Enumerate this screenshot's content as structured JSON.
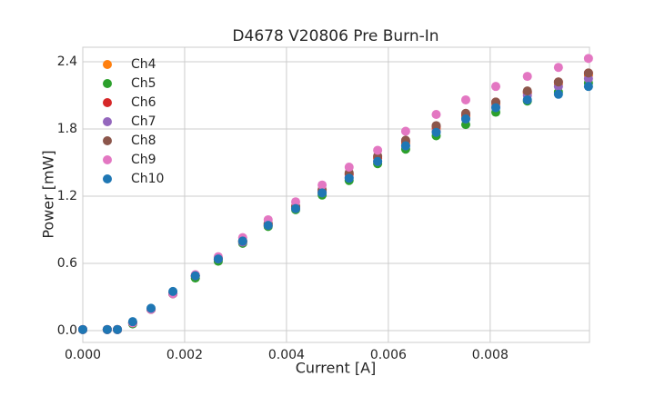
{
  "chart_data": {
    "type": "scatter",
    "title": "D4678 V20806 Pre Burn-In",
    "x_label": "Current [A]",
    "y_label": "Power [mW]",
    "x": [
      0,
      0.00048,
      0.00068,
      0.00098,
      0.00134,
      0.00177,
      0.00221,
      0.00266,
      0.00314,
      0.00364,
      0.00418,
      0.0047,
      0.00523,
      0.00579,
      0.00634,
      0.00694,
      0.00752,
      0.00811,
      0.00873,
      0.00934,
      0.00993
    ],
    "series": [
      {
        "name": "Ch4",
        "color": "#ff7f0e",
        "values": [
          0.01,
          0.01,
          0.01,
          0.07,
          0.19,
          0.33,
          0.49,
          0.64,
          0.8,
          0.95,
          1.1,
          1.24,
          1.39,
          1.54,
          1.67,
          1.8,
          1.91,
          2.02,
          2.12,
          2.2,
          2.28
        ]
      },
      {
        "name": "Ch5",
        "color": "#2ca02c",
        "values": [
          0.01,
          0.01,
          0.01,
          0.06,
          0.19,
          0.33,
          0.47,
          0.62,
          0.78,
          0.93,
          1.08,
          1.21,
          1.34,
          1.49,
          1.62,
          1.74,
          1.84,
          1.95,
          2.05,
          2.13,
          2.21
        ]
      },
      {
        "name": "Ch6",
        "color": "#d62728",
        "values": [
          0.01,
          0.01,
          0.01,
          0.07,
          0.19,
          0.33,
          0.49,
          0.64,
          0.8,
          0.95,
          1.11,
          1.25,
          1.4,
          1.55,
          1.69,
          1.82,
          1.93,
          2.04,
          2.13,
          2.22,
          2.3
        ]
      },
      {
        "name": "Ch7",
        "color": "#9467bd",
        "values": [
          0.01,
          0.01,
          0.01,
          0.07,
          0.19,
          0.33,
          0.49,
          0.64,
          0.79,
          0.94,
          1.09,
          1.23,
          1.37,
          1.51,
          1.65,
          1.78,
          1.89,
          2.0,
          2.1,
          2.18,
          2.25
        ]
      },
      {
        "name": "Ch8",
        "color": "#8c564b",
        "values": [
          0.01,
          0.01,
          0.01,
          0.07,
          0.19,
          0.33,
          0.49,
          0.65,
          0.8,
          0.96,
          1.11,
          1.26,
          1.41,
          1.56,
          1.7,
          1.83,
          1.94,
          2.04,
          2.14,
          2.22,
          2.3
        ]
      },
      {
        "name": "Ch9",
        "color": "#e377c2",
        "values": [
          0.01,
          0.01,
          0.01,
          0.07,
          0.19,
          0.33,
          0.5,
          0.66,
          0.83,
          0.99,
          1.15,
          1.3,
          1.46,
          1.61,
          1.78,
          1.93,
          2.06,
          2.18,
          2.27,
          2.35,
          2.43
        ]
      },
      {
        "name": "Ch10",
        "color": "#1f77b4",
        "values": [
          0.01,
          0.01,
          0.01,
          0.08,
          0.2,
          0.35,
          0.49,
          0.64,
          0.8,
          0.94,
          1.09,
          1.23,
          1.36,
          1.51,
          1.65,
          1.77,
          1.89,
          1.99,
          2.06,
          2.11,
          2.18
        ]
      }
    ],
    "xlim": [
      0,
      0.00995
    ],
    "ylim": [
      -0.105,
      2.53
    ],
    "xticks": [
      {
        "value": 0,
        "label": "0.000"
      },
      {
        "value": 0.002,
        "label": "0.002"
      },
      {
        "value": 0.004,
        "label": "0.004"
      },
      {
        "value": 0.006,
        "label": "0.006"
      },
      {
        "value": 0.008,
        "label": "0.008"
      }
    ],
    "yticks": [
      {
        "value": 0,
        "label": "0.0"
      },
      0.6,
      1.2,
      1.8,
      2.4
    ],
    "grid": true,
    "legend_position": "upper-left"
  }
}
